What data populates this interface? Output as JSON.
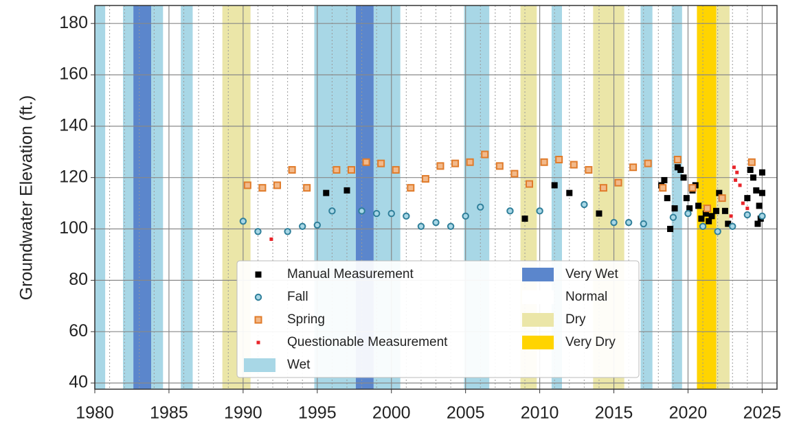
{
  "chart_data": {
    "type": "scatter",
    "ylabel": "Groundwater Elevation (ft.)",
    "xlim": [
      1980,
      2026
    ],
    "ylim": [
      37.6,
      187
    ],
    "xticks": [
      1980,
      1985,
      1990,
      1995,
      2000,
      2005,
      2010,
      2015,
      2020,
      2025
    ],
    "yticks": [
      40,
      60,
      80,
      100,
      120,
      140,
      160,
      180
    ],
    "xminorticks": [
      1981,
      1982,
      1983,
      1984,
      1986,
      1987,
      1988,
      1989,
      1991,
      1992,
      1993,
      1994,
      1996,
      1997,
      1998,
      1999,
      2001,
      2002,
      2003,
      2004,
      2006,
      2007,
      2008,
      2009,
      2011,
      2012,
      2013,
      2014,
      2016,
      2017,
      2018,
      2019,
      2021,
      2022,
      2023,
      2024
    ],
    "grid": true,
    "bands": [
      {
        "name": "Wet",
        "color": "#a8d7e6",
        "spans": [
          [
            1980.0,
            1980.7
          ],
          [
            1981.9,
            1982.6
          ],
          [
            1983.8,
            1984.6
          ],
          [
            1985.8,
            1986.6
          ],
          [
            1994.8,
            1997.6
          ],
          [
            1998.8,
            2000.6
          ],
          [
            2004.9,
            2006.6
          ],
          [
            2010.8,
            2011.5
          ],
          [
            2016.8,
            2017.6
          ],
          [
            2018.9,
            2019.6
          ]
        ]
      },
      {
        "name": "Very Wet",
        "color": "#5b86cc",
        "spans": [
          [
            1982.6,
            1983.8
          ],
          [
            1997.6,
            1998.8
          ]
        ]
      },
      {
        "name": "Normal",
        "color": "#ffffff",
        "spans": []
      },
      {
        "name": "Dry",
        "color": "#ebe6a8",
        "spans": [
          [
            1988.6,
            1990.5
          ],
          [
            2008.7,
            2009.8
          ],
          [
            2013.6,
            2015.7
          ],
          [
            2021.9,
            2022.8
          ]
        ]
      },
      {
        "name": "Very Dry",
        "color": "#ffd400",
        "spans": [
          [
            2020.6,
            2021.9
          ]
        ]
      }
    ],
    "series": [
      {
        "name": "Manual Measurement",
        "color": "#000000",
        "marker": "square",
        "x": [
          1995.6,
          1997.0,
          2009.0,
          2011.0,
          2012.0,
          2014.0,
          2018.2,
          2018.4,
          2018.6,
          2018.8,
          2019.1,
          2019.3,
          2019.5,
          2019.7,
          2019.9,
          2020.1,
          2020.3,
          2020.5,
          2020.7,
          2020.9,
          2021.2,
          2021.4,
          2021.6,
          2021.9,
          2022.1,
          2022.3,
          2022.5,
          2022.7,
          2024.0,
          2024.2,
          2024.4,
          2024.6,
          2024.7,
          2024.8,
          2024.9,
          2025.0,
          2025.0
        ],
        "values": [
          114,
          115,
          104,
          117,
          114,
          106,
          117,
          119,
          112,
          100,
          108,
          124,
          123,
          120,
          112,
          108,
          115,
          117,
          109,
          104,
          106,
          103,
          105,
          107,
          114,
          112,
          107,
          102,
          112,
          123,
          120,
          115,
          102,
          109,
          104,
          114,
          122
        ]
      },
      {
        "name": "Fall",
        "color": "#2f7f9a",
        "marker": "circle",
        "x": [
          1990,
          1991,
          1993,
          1994,
          1995,
          1996,
          1998,
          1999,
          2000,
          2001,
          2002,
          2003,
          2004,
          2005,
          2006,
          2008,
          2010,
          2013,
          2015,
          2016,
          2017,
          2019,
          2020,
          2021,
          2022,
          2023,
          2024,
          2025
        ],
        "values": [
          103,
          99,
          99,
          101,
          101.5,
          107,
          107,
          106,
          106,
          105,
          101,
          102.5,
          101,
          105,
          108.5,
          107,
          107,
          109.5,
          102.5,
          102.5,
          102,
          104.5,
          106,
          101,
          99,
          101,
          105.5,
          105
        ]
      },
      {
        "name": "Spring",
        "color": "#e07b2a",
        "marker": "square",
        "x": [
          1990.3,
          1991.3,
          1992.3,
          1993.3,
          1994.3,
          1996.3,
          1997.3,
          1998.3,
          1999.3,
          2000.3,
          2001.3,
          2002.3,
          2003.3,
          2004.3,
          2005.3,
          2006.3,
          2007.3,
          2008.3,
          2009.3,
          2010.3,
          2011.3,
          2012.3,
          2013.3,
          2014.3,
          2015.3,
          2016.3,
          2017.3,
          2018.3,
          2019.3,
          2020.3,
          2021.3,
          2022.3,
          2024.3
        ],
        "values": [
          117,
          116,
          117,
          123,
          116,
          123,
          123,
          126,
          125.5,
          123,
          116,
          119.5,
          124.5,
          125.5,
          126,
          129,
          124.5,
          121.5,
          117.5,
          126,
          127,
          125,
          123,
          116,
          118,
          124,
          125.5,
          116,
          127,
          116,
          108,
          112,
          126
        ]
      },
      {
        "name": "Questionable Measurement",
        "color": "#e8242a",
        "marker": "small",
        "x": [
          1991.9,
          2022.9,
          2023.1,
          2023.2,
          2023.3,
          2023.5,
          2023.7,
          2024.0
        ],
        "values": [
          96,
          105,
          124,
          119,
          122,
          117,
          110,
          108
        ]
      }
    ]
  }
}
